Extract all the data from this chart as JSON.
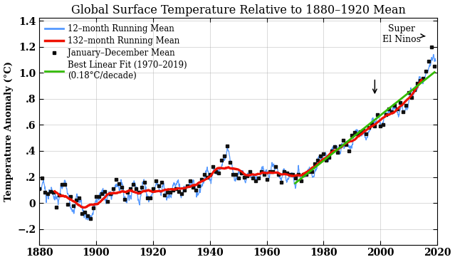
{
  "title": "Global Surface Temperature Relative to 1880–1920 Mean",
  "ylabel": "Temperature Anomaly (°C)",
  "xlim": [
    1880,
    2020
  ],
  "ylim": [
    -0.32,
    1.42
  ],
  "yticks": [
    -0.2,
    0.0,
    0.2,
    0.4,
    0.6,
    0.8,
    1.0,
    1.2,
    1.4
  ],
  "ytick_labels": [
    "−.2",
    "0",
    ".2",
    ".4",
    ".6",
    ".8",
    "1.0",
    "1.2",
    "1.4"
  ],
  "xticks": [
    1880,
    1900,
    1920,
    1940,
    1960,
    1980,
    2000,
    2020
  ],
  "color_12month": "#5599ff",
  "color_132month": "#ee1100",
  "color_annual": "#111111",
  "color_linear": "#33bb00",
  "legend_12month": "12–month Running Mean",
  "legend_132month": "132–month Running Mean",
  "legend_annual": "January–December Mean",
  "legend_linear": "Best Linear Fit (1970–2019)\n(0.18°C/decade)",
  "annual_temps": [
    0.11,
    0.19,
    0.08,
    0.07,
    0.09,
    0.08,
    -0.03,
    0.06,
    0.14,
    0.14,
    -0.01,
    0.05,
    -0.02,
    0.02,
    0.04,
    -0.08,
    -0.07,
    -0.1,
    -0.12,
    -0.04,
    0.05,
    0.05,
    0.07,
    0.09,
    0.01,
    0.07,
    0.11,
    0.18,
    0.15,
    0.12,
    0.03,
    0.08,
    0.11,
    0.14,
    0.11,
    0.08,
    0.12,
    0.16,
    0.04,
    0.04,
    0.11,
    0.17,
    0.13,
    0.16,
    0.06,
    0.08,
    0.08,
    0.1,
    0.11,
    0.09,
    0.07,
    0.1,
    0.13,
    0.17,
    0.12,
    0.1,
    0.13,
    0.18,
    0.22,
    0.2,
    0.22,
    0.28,
    0.24,
    0.23,
    0.33,
    0.36,
    0.44,
    0.31,
    0.22,
    0.22,
    0.19,
    0.23,
    0.2,
    0.21,
    0.24,
    0.19,
    0.17,
    0.19,
    0.24,
    0.22,
    0.18,
    0.24,
    0.24,
    0.28,
    0.22,
    0.16,
    0.24,
    0.23,
    0.22,
    0.22,
    0.19,
    0.22,
    0.17,
    0.22,
    0.22,
    0.24,
    0.24,
    0.3,
    0.33,
    0.36,
    0.38,
    0.33,
    0.35,
    0.4,
    0.43,
    0.39,
    0.44,
    0.48,
    0.45,
    0.4,
    0.52,
    0.54,
    0.53,
    0.55,
    0.56,
    0.53,
    0.58,
    0.61,
    0.59,
    0.68,
    0.59,
    0.6,
    0.68,
    0.72,
    0.7,
    0.75,
    0.72,
    0.77,
    0.7,
    0.75,
    0.85,
    0.81,
    0.87,
    0.92,
    0.94,
    0.96,
    1.01,
    1.09,
    1.2,
    1.05
  ]
}
